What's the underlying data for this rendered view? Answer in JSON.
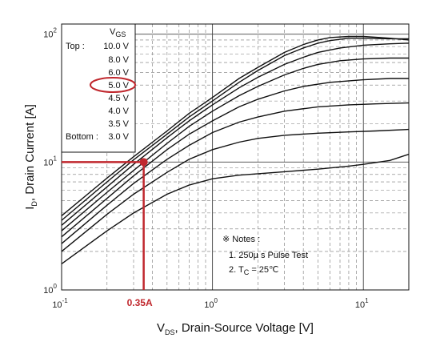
{
  "chart_data": {
    "type": "line",
    "x_scale": "log",
    "y_scale": "log",
    "xlim": [
      0.1,
      20
    ],
    "ylim": [
      1,
      120
    ],
    "grid": true,
    "x_ticks": [
      {
        "value": 0.1,
        "base": "10",
        "exp": "-1"
      },
      {
        "value": 1,
        "base": "10",
        "exp": "0"
      },
      {
        "value": 10,
        "base": "10",
        "exp": "1"
      }
    ],
    "y_ticks": [
      {
        "value": 1,
        "base": "10",
        "exp": "0"
      },
      {
        "value": 10,
        "base": "10",
        "exp": "1"
      },
      {
        "value": 100,
        "base": "10",
        "exp": "2"
      }
    ],
    "xlabel": {
      "v": "V",
      "sub": "DS",
      "rest": ", Drain-Source Voltage [V]"
    },
    "ylabel": {
      "v": "I",
      "sub": "D",
      "rest": ", Drain Current [A]"
    },
    "legend": {
      "header_v": "V",
      "header_sub": "GS",
      "top_label": "Top :",
      "bottom_label": "Bottom :",
      "placement": "top-left",
      "entries": [
        "10.0 V",
        "8.0 V",
        "6.0 V",
        "5.0 V",
        "4.5 V",
        "4.0 V",
        "3.5 V",
        "3.0 V"
      ]
    },
    "series": [
      {
        "name": "10.0 V",
        "x": [
          0.1,
          0.2,
          0.3,
          0.5,
          0.7,
          1,
          1.5,
          2,
          3,
          4,
          5,
          6,
          8,
          10,
          15,
          20
        ],
        "y": [
          3.8,
          7.5,
          11,
          17.5,
          24,
          32,
          45,
          55,
          72,
          83,
          90,
          94,
          96,
          96,
          93,
          90
        ]
      },
      {
        "name": "8.0 V",
        "x": [
          0.1,
          0.2,
          0.3,
          0.5,
          0.7,
          1,
          1.5,
          2,
          3,
          4,
          5,
          6,
          8,
          10,
          15,
          20
        ],
        "y": [
          3.5,
          7,
          10.4,
          16.5,
          22.5,
          30,
          42,
          52,
          68,
          78,
          85,
          89,
          93,
          93,
          92,
          92
        ]
      },
      {
        "name": "6.0 V",
        "x": [
          0.1,
          0.2,
          0.3,
          0.5,
          0.7,
          1,
          1.5,
          2,
          3,
          4,
          5,
          7,
          10,
          15,
          20
        ],
        "y": [
          3.2,
          6.4,
          9.6,
          15.5,
          21,
          28,
          38,
          46,
          58,
          66,
          72,
          78,
          82,
          84,
          85
        ]
      },
      {
        "name": "5.0 V",
        "x": [
          0.1,
          0.2,
          0.3,
          0.5,
          0.7,
          1,
          1.5,
          2,
          3,
          4,
          5,
          7,
          10,
          15,
          20
        ],
        "y": [
          2.9,
          5.8,
          8.6,
          14,
          19,
          25,
          33,
          39,
          48,
          54,
          58,
          62,
          64,
          65,
          65
        ]
      },
      {
        "name": "4.5 V",
        "x": [
          0.1,
          0.2,
          0.3,
          0.5,
          0.7,
          1,
          1.5,
          2,
          3,
          4,
          6,
          10,
          15,
          20
        ],
        "y": [
          2.6,
          5.2,
          7.8,
          12.5,
          16.5,
          21,
          27,
          31,
          36,
          39,
          42,
          44,
          45,
          45
        ]
      },
      {
        "name": "4.0 V",
        "x": [
          0.1,
          0.2,
          0.3,
          0.5,
          0.7,
          1,
          1.5,
          2,
          3,
          5,
          8,
          12,
          20
        ],
        "y": [
          2.3,
          4.6,
          6.8,
          10.5,
          13.5,
          17,
          20.5,
          22.5,
          25,
          27,
          28,
          28.5,
          29
        ]
      },
      {
        "name": "3.5 V",
        "x": [
          0.1,
          0.2,
          0.3,
          0.5,
          0.7,
          1,
          1.5,
          2,
          3,
          5,
          8,
          12,
          20
        ],
        "y": [
          2.0,
          3.9,
          5.6,
          8.3,
          10.5,
          12.5,
          14.3,
          15.3,
          16.2,
          16.8,
          17.2,
          17.5,
          18
        ]
      },
      {
        "name": "3.0 V",
        "x": [
          0.1,
          0.2,
          0.3,
          0.5,
          0.7,
          1,
          1.5,
          2,
          3,
          5,
          8,
          10,
          15,
          20
        ],
        "y": [
          1.6,
          2.9,
          4.0,
          5.6,
          6.6,
          7.4,
          7.9,
          8.1,
          8.4,
          8.8,
          9.3,
          9.6,
          10.3,
          11.5
        ]
      }
    ],
    "annotations": {
      "point_x": 0.35,
      "point_y": 10,
      "highlighted_entry": "5.0 V",
      "x_label": "0.35A",
      "color": "#c0272d"
    },
    "notes": {
      "title": "※ Notes :",
      "line1": "1. 250µ s Pulse Test",
      "line2_prefix": "2. T",
      "line2_sub": "C",
      "line2_suffix": " = 25℃"
    }
  }
}
